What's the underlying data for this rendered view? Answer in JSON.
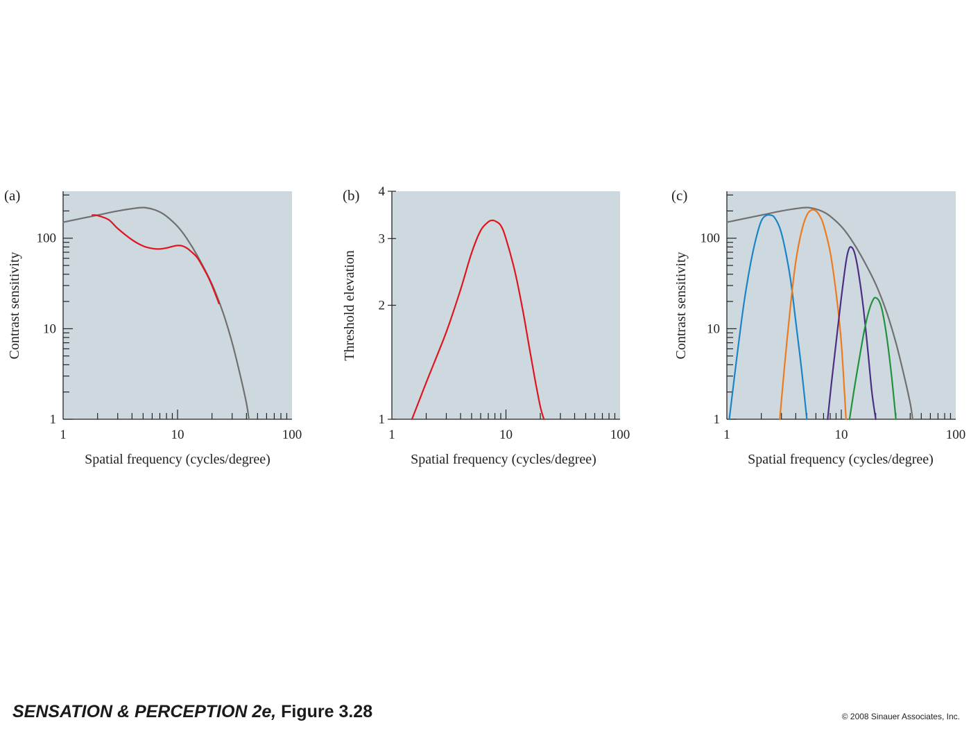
{
  "colors": {
    "panel_bg": "#cdd9df",
    "axis": "#222222",
    "gray_curve": "#707070",
    "red": "#e0141e",
    "blue": "#1a84c7",
    "orange": "#ef7a1c",
    "purple": "#4b2e83",
    "green": "#21913a"
  },
  "footer": {
    "title_italic": "SENSATION & PERCEPTION 2e,",
    "title_rest": " Figure 3.28",
    "copyright": "© 2008 Sinauer Associates, Inc."
  },
  "chart_data": [
    {
      "panel": "(a)",
      "type": "line",
      "xlabel": "Spatial frequency (cycles/degree)",
      "ylabel": "Contrast sensitivity",
      "xscale": "log",
      "yscale": "log",
      "xlim": [
        1,
        100
      ],
      "ylim": [
        1,
        330
      ],
      "xticks": [
        1,
        10,
        100
      ],
      "xtick_labels": [
        "1",
        "10",
        "100"
      ],
      "yticks": [
        1,
        10,
        100
      ],
      "ytick_labels": [
        "1",
        "10",
        "100"
      ],
      "series": [
        {
          "color": "#707070",
          "x": [
            1,
            2,
            3,
            4,
            5,
            6,
            7,
            8,
            10,
            12,
            15,
            20,
            25,
            30,
            35,
            40,
            42
          ],
          "y": [
            150,
            180,
            200,
            212,
            218,
            210,
            195,
            175,
            135,
            100,
            63,
            31,
            15,
            7,
            3.2,
            1.5,
            1
          ]
        },
        {
          "color": "#e0141e",
          "x": [
            1.8,
            2,
            2.5,
            3,
            4,
            5,
            6,
            7,
            8,
            9,
            10,
            11,
            12,
            13,
            15,
            18,
            20,
            23
          ],
          "y": [
            180,
            178,
            160,
            128,
            96,
            82,
            77,
            76,
            78,
            81,
            83,
            82,
            78,
            72,
            60,
            40,
            30,
            19
          ]
        }
      ]
    },
    {
      "panel": "(b)",
      "type": "line",
      "xlabel": "Spatial frequency (cycles/degree)",
      "ylabel": "Threshold elevation",
      "xscale": "log",
      "yscale": "log",
      "xlim": [
        1,
        100
      ],
      "ylim": [
        1,
        4
      ],
      "xticks": [
        1,
        10,
        100
      ],
      "xtick_labels": [
        "1",
        "10",
        "100"
      ],
      "yticks": [
        1,
        2,
        3,
        4
      ],
      "ytick_labels": [
        "1",
        "2",
        "3",
        "4"
      ],
      "series": [
        {
          "color": "#e0141e",
          "x": [
            1.5,
            2,
            3,
            4,
            5,
            6,
            7,
            7.5,
            8,
            9,
            10,
            12,
            14,
            16,
            18,
            20,
            21.5
          ],
          "y": [
            1,
            1.25,
            1.7,
            2.2,
            2.75,
            3.15,
            3.32,
            3.35,
            3.34,
            3.25,
            3.0,
            2.45,
            1.95,
            1.55,
            1.27,
            1.08,
            1
          ]
        }
      ]
    },
    {
      "panel": "(c)",
      "type": "line",
      "xlabel": "Spatial frequency (cycles/degree)",
      "ylabel": "Contrast sensitivity",
      "xscale": "log",
      "yscale": "log",
      "xlim": [
        1,
        100
      ],
      "ylim": [
        1,
        330
      ],
      "xticks": [
        1,
        10,
        100
      ],
      "xtick_labels": [
        "1",
        "10",
        "100"
      ],
      "yticks": [
        1,
        10,
        100
      ],
      "ytick_labels": [
        "1",
        "10",
        "100"
      ],
      "series": [
        {
          "color": "#707070",
          "x": [
            1,
            2,
            3,
            4,
            5,
            6,
            7,
            8,
            10,
            12,
            15,
            20,
            25,
            30,
            35,
            40,
            42
          ],
          "y": [
            150,
            180,
            200,
            212,
            218,
            210,
            195,
            175,
            135,
            100,
            63,
            31,
            15,
            7,
            3.2,
            1.5,
            1
          ]
        },
        {
          "color": "#1a84c7",
          "x": [
            1.05,
            1.2,
            1.4,
            1.6,
            1.8,
            2.0,
            2.2,
            2.4,
            2.6,
            2.9,
            3.2,
            3.6,
            4.0,
            4.5,
            5.0
          ],
          "y": [
            1,
            4,
            18,
            50,
            100,
            155,
            178,
            180,
            170,
            130,
            80,
            35,
            12,
            3.5,
            1
          ]
        },
        {
          "color": "#ef7a1c",
          "x": [
            2.9,
            3.2,
            3.6,
            4.0,
            4.5,
            5.0,
            5.5,
            6.0,
            6.5,
            7.0,
            8.0,
            9.0,
            10.0,
            11.0
          ],
          "y": [
            1,
            4,
            18,
            55,
            120,
            180,
            205,
            200,
            175,
            140,
            70,
            25,
            7,
            1
          ]
        },
        {
          "color": "#4b2e83",
          "x": [
            7.6,
            8.2,
            9.0,
            10.0,
            11.0,
            11.6,
            12.2,
            13.0,
            14.0,
            15.5,
            17.0,
            18.5,
            20.0
          ],
          "y": [
            1,
            2.5,
            7,
            22,
            55,
            75,
            80,
            70,
            45,
            18,
            6,
            2,
            1
          ]
        },
        {
          "color": "#21913a",
          "x": [
            11.8,
            13.0,
            14.5,
            16.0,
            17.5,
            19.0,
            20.0,
            21.5,
            23.0,
            25.0,
            27.5,
            30.0
          ],
          "y": [
            1,
            2.2,
            5,
            10,
            16,
            21,
            22,
            20,
            15,
            8,
            3,
            1
          ]
        }
      ]
    }
  ]
}
